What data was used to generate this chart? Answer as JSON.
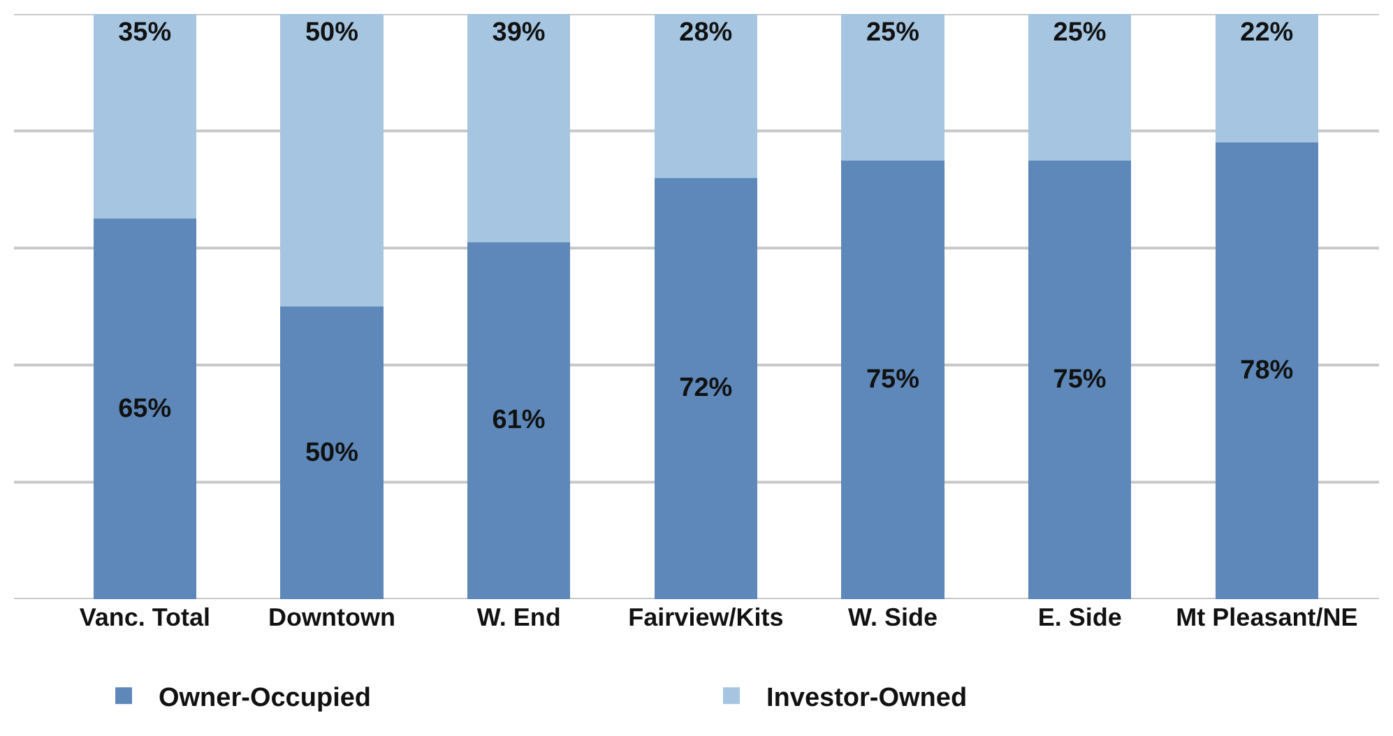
{
  "chart_data": {
    "type": "bar",
    "stacked": true,
    "categories": [
      "Vanc. Total",
      "Downtown",
      "W. End",
      "Fairview/Kits",
      "W. Side",
      "E. Side",
      "Mt Pleasant/NE"
    ],
    "series": [
      {
        "name": "Owner-Occupied",
        "color": "#5d88b9",
        "values": [
          65,
          50,
          61,
          72,
          75,
          75,
          78
        ],
        "value_labels": [
          "65%",
          "50%",
          "61%",
          "72%",
          "75%",
          "75%",
          "78%"
        ]
      },
      {
        "name": "Investor-Owned",
        "color": "#a5c5e1",
        "values": [
          35,
          50,
          39,
          28,
          25,
          25,
          22
        ],
        "value_labels": [
          "35%",
          "50%",
          "39%",
          "28%",
          "25%",
          "25%",
          "22%"
        ]
      }
    ],
    "ylim": [
      0,
      100
    ],
    "yticks": [
      {
        "value": 0,
        "label": null
      },
      {
        "value": 20,
        "label": null
      },
      {
        "value": 40,
        "label": null
      },
      {
        "value": 60,
        "label": null
      },
      {
        "value": 80,
        "label": null
      },
      {
        "value": 100,
        "label": null
      }
    ],
    "tick_labels": "x",
    "grid": "y",
    "legend": "bottom"
  }
}
